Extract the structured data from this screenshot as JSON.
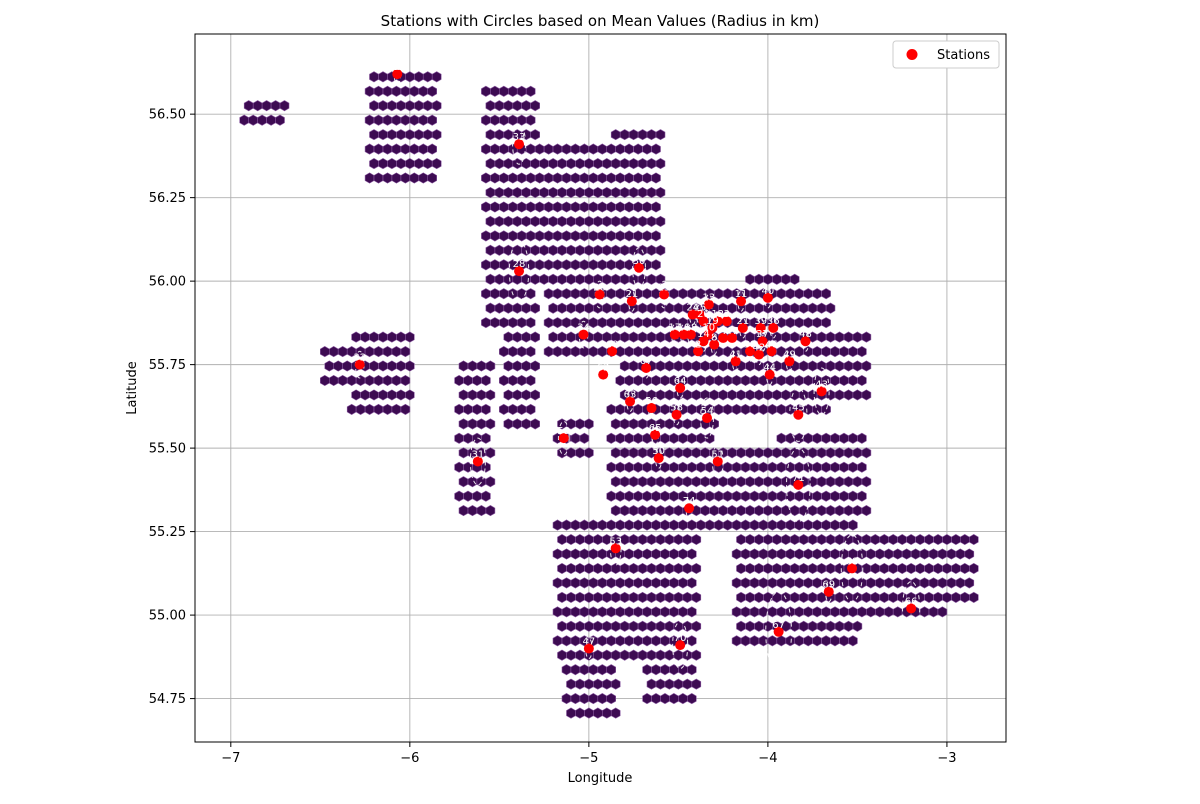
{
  "chart_data": {
    "type": "scatter",
    "title": "Stations with Circles based on Mean Values (Radius in km)",
    "xlabel": "Longitude",
    "ylabel": "Latitude",
    "xlim": [
      -7.2,
      -2.67
    ],
    "ylim": [
      54.62,
      56.74
    ],
    "xticks": [
      -7,
      -6,
      -5,
      -4,
      -3
    ],
    "yticks": [
      54.75,
      55.0,
      55.25,
      55.5,
      55.75,
      56.0,
      56.25,
      56.5
    ],
    "xtick_labels": [
      "−7",
      "−6",
      "−5",
      "−4",
      "−3"
    ],
    "ytick_labels": [
      "54.75",
      "55.00",
      "55.25",
      "55.50",
      "55.75",
      "56.00",
      "56.25",
      "56.50"
    ],
    "grid": true,
    "legend": {
      "placement": "top-right",
      "entries": [
        {
          "label": "Stations",
          "color": "#ff0000"
        }
      ]
    },
    "colors": {
      "hex_fill": "#3d0b52",
      "hex_edge": "#8a5aa0",
      "station": "#ff0000",
      "ring": "#ffffff"
    },
    "hex_cell_size_deg": 0.05,
    "coverage_regions": [
      {
        "lon": [
          -6.95,
          -6.7
        ],
        "lat": [
          56.45,
          56.55
        ]
      },
      {
        "lon": [
          -6.25,
          -5.85
        ],
        "lat": [
          56.3,
          56.62
        ]
      },
      {
        "lon": [
          -6.5,
          -6.3
        ],
        "lat": [
          55.68,
          55.8
        ]
      },
      {
        "lon": [
          -6.35,
          -6.0
        ],
        "lat": [
          55.6,
          55.85
        ]
      },
      {
        "lon": [
          -5.75,
          -5.55
        ],
        "lat": [
          55.3,
          55.75
        ]
      },
      {
        "lon": [
          -5.6,
          -5.3
        ],
        "lat": [
          55.85,
          56.58
        ]
      },
      {
        "lon": [
          -5.45,
          -4.9
        ],
        "lat": [
          56.0,
          56.4
        ]
      },
      {
        "lon": [
          -5.25,
          -4.7
        ],
        "lat": [
          55.75,
          56.05
        ]
      },
      {
        "lon": [
          -4.9,
          -4.6
        ],
        "lat": [
          56.0,
          56.45
        ]
      },
      {
        "lon": [
          -5.5,
          -5.3
        ],
        "lat": [
          55.55,
          55.95
        ]
      },
      {
        "lon": [
          -5.2,
          -5.0
        ],
        "lat": [
          55.45,
          55.6
        ]
      },
      {
        "lon": [
          -4.85,
          -3.65
        ],
        "lat": [
          55.6,
          55.98
        ]
      },
      {
        "lon": [
          -4.15,
          -3.85
        ],
        "lat": [
          55.95,
          56.02
        ]
      },
      {
        "lon": [
          -3.9,
          -3.45
        ],
        "lat": [
          55.65,
          55.85
        ]
      },
      {
        "lon": [
          -4.9,
          -4.3
        ],
        "lat": [
          55.25,
          55.65
        ]
      },
      {
        "lon": [
          -4.35,
          -3.9
        ],
        "lat": [
          55.25,
          55.5
        ]
      },
      {
        "lon": [
          -3.95,
          -3.45
        ],
        "lat": [
          55.3,
          55.55
        ]
      },
      {
        "lon": [
          -4.2,
          -3.5
        ],
        "lat": [
          54.9,
          55.3
        ]
      },
      {
        "lon": [
          -3.55,
          -3.0
        ],
        "lat": [
          55.0,
          55.25
        ]
      },
      {
        "lon": [
          -5.2,
          -4.4
        ],
        "lat": [
          54.85,
          55.3
        ]
      },
      {
        "lon": [
          -5.15,
          -4.85
        ],
        "lat": [
          54.68,
          54.95
        ]
      },
      {
        "lon": [
          -4.7,
          -4.4
        ],
        "lat": [
          54.72,
          54.85
        ]
      },
      {
        "lon": [
          -3.05,
          -2.85
        ],
        "lat": [
          55.05,
          55.25
        ]
      }
    ],
    "stations": [
      {
        "id": "2",
        "lon": -6.07,
        "lat": 56.62,
        "radius_deg": 0.03
      },
      {
        "id": "33",
        "lon": -5.39,
        "lat": 56.41,
        "radius_deg": 0.06
      },
      {
        "id": "28",
        "lon": -5.39,
        "lat": 56.03,
        "radius_deg": 0.09
      },
      {
        "id": "32",
        "lon": -6.28,
        "lat": 55.75,
        "radius_deg": 0.04
      },
      {
        "id": "30",
        "lon": -4.72,
        "lat": 56.04,
        "radius_deg": 0.06
      },
      {
        "id": "26",
        "lon": -4.94,
        "lat": 55.96,
        "radius_deg": 0.04
      },
      {
        "id": "21",
        "lon": -4.76,
        "lat": 55.94,
        "radius_deg": 0.03
      },
      {
        "id": "25",
        "lon": -4.58,
        "lat": 55.96,
        "radius_deg": 0.04
      },
      {
        "id": "34",
        "lon": -5.03,
        "lat": 55.84,
        "radius_deg": 0.04
      },
      {
        "id": "60",
        "lon": -4.87,
        "lat": 55.79,
        "radius_deg": 0.03
      },
      {
        "id": "62",
        "lon": -4.92,
        "lat": 55.72,
        "radius_deg": 0.05
      },
      {
        "id": "67",
        "lon": -4.68,
        "lat": 55.74,
        "radius_deg": 0.03
      },
      {
        "id": "63",
        "lon": -4.77,
        "lat": 55.64,
        "radius_deg": 0.03
      },
      {
        "id": "56",
        "lon": -4.65,
        "lat": 55.62,
        "radius_deg": 0.03
      },
      {
        "id": "58",
        "lon": -4.51,
        "lat": 55.6,
        "radius_deg": 0.03
      },
      {
        "id": "54",
        "lon": -4.34,
        "lat": 55.59,
        "radius_deg": 0.06
      },
      {
        "id": "64",
        "lon": -4.49,
        "lat": 55.68,
        "radius_deg": 0.03
      },
      {
        "id": "65",
        "lon": -4.63,
        "lat": 55.54,
        "radius_deg": 0.03
      },
      {
        "id": "59",
        "lon": -5.14,
        "lat": 55.53,
        "radius_deg": 0.05
      },
      {
        "id": "50",
        "lon": -4.61,
        "lat": 55.47,
        "radius_deg": 0.03
      },
      {
        "id": "51",
        "lon": -4.28,
        "lat": 55.46,
        "radius_deg": 0.05
      },
      {
        "id": "31",
        "lon": -5.62,
        "lat": 55.46,
        "radius_deg": 0.07
      },
      {
        "id": "71",
        "lon": -3.83,
        "lat": 55.39,
        "radius_deg": 0.11
      },
      {
        "id": "74",
        "lon": -4.44,
        "lat": 55.32,
        "radius_deg": 0.03
      },
      {
        "id": "53",
        "lon": -4.85,
        "lat": 55.2,
        "radius_deg": 0.05
      },
      {
        "id": "68",
        "lon": -3.53,
        "lat": 55.14,
        "radius_deg": 0.1
      },
      {
        "id": "69",
        "lon": -3.66,
        "lat": 55.07,
        "radius_deg": 0.03
      },
      {
        "id": "66",
        "lon": -3.2,
        "lat": 55.02,
        "radius_deg": 0.08
      },
      {
        "id": "67",
        "lon": -3.94,
        "lat": 54.95,
        "radius_deg": 0.12
      },
      {
        "id": "70",
        "lon": -4.49,
        "lat": 54.91,
        "radius_deg": 0.07
      },
      {
        "id": "47",
        "lon": -5.0,
        "lat": 54.9,
        "radius_deg": 0.03
      },
      {
        "id": "43",
        "lon": -3.7,
        "lat": 55.67,
        "radius_deg": 0.07
      },
      {
        "id": "45",
        "lon": -3.83,
        "lat": 55.6,
        "radius_deg": 0.08
      },
      {
        "id": "44",
        "lon": -3.99,
        "lat": 55.72,
        "radius_deg": 0.03
      },
      {
        "id": "49",
        "lon": -3.88,
        "lat": 55.76,
        "radius_deg": 0.03
      },
      {
        "id": "48",
        "lon": -3.79,
        "lat": 55.82,
        "radius_deg": 0.03
      },
      {
        "id": "46",
        "lon": -3.98,
        "lat": 55.79,
        "radius_deg": 0.03
      },
      {
        "id": "42",
        "lon": -4.05,
        "lat": 55.78,
        "radius_deg": 0.03
      },
      {
        "id": "41",
        "lon": -4.18,
        "lat": 55.76,
        "radius_deg": 0.03
      },
      {
        "id": "38",
        "lon": -4.1,
        "lat": 55.79,
        "radius_deg": 0.03
      },
      {
        "id": "37",
        "lon": -4.03,
        "lat": 55.82,
        "radius_deg": 0.03
      },
      {
        "id": "39",
        "lon": -4.04,
        "lat": 55.86,
        "radius_deg": 0.03
      },
      {
        "id": "36",
        "lon": -3.97,
        "lat": 55.86,
        "radius_deg": 0.03
      },
      {
        "id": "40",
        "lon": -4.0,
        "lat": 55.95,
        "radius_deg": 0.03
      },
      {
        "id": "11",
        "lon": -4.15,
        "lat": 55.94,
        "radius_deg": 0.03
      },
      {
        "id": "13",
        "lon": -4.33,
        "lat": 55.93,
        "radius_deg": 0.03
      },
      {
        "id": "24",
        "lon": -4.42,
        "lat": 55.9,
        "radius_deg": 0.03
      },
      {
        "id": "15",
        "lon": -4.38,
        "lat": 55.9,
        "radius_deg": 0.03
      },
      {
        "id": "20",
        "lon": -4.36,
        "lat": 55.88,
        "radius_deg": 0.03
      },
      {
        "id": "12",
        "lon": -4.28,
        "lat": 55.88,
        "radius_deg": 0.03
      },
      {
        "id": "3",
        "lon": -4.23,
        "lat": 55.88,
        "radius_deg": 0.03
      },
      {
        "id": "19",
        "lon": -4.31,
        "lat": 55.86,
        "radius_deg": 0.03
      },
      {
        "id": "21b",
        "label": "21",
        "lon": -4.14,
        "lat": 55.86,
        "radius_deg": 0.03
      },
      {
        "id": "10",
        "lon": -4.33,
        "lat": 55.84,
        "radius_deg": 0.03
      },
      {
        "id": "14",
        "lon": -4.36,
        "lat": 55.82,
        "radius_deg": 0.03
      },
      {
        "id": "4",
        "lon": -4.25,
        "lat": 55.83,
        "radius_deg": 0.03
      },
      {
        "id": "47b",
        "label": "47",
        "lon": -4.2,
        "lat": 55.83,
        "radius_deg": 0.03
      },
      {
        "id": "8",
        "lon": -4.3,
        "lat": 55.81,
        "radius_deg": 0.03
      },
      {
        "id": "17",
        "lon": -4.52,
        "lat": 55.84,
        "radius_deg": 0.03
      },
      {
        "id": "16",
        "lon": -4.47,
        "lat": 55.84,
        "radius_deg": 0.03
      },
      {
        "id": "18",
        "lon": -4.43,
        "lat": 55.84,
        "radius_deg": 0.03
      },
      {
        "id": "2b",
        "label": "2",
        "lon": -4.39,
        "lat": 55.79,
        "radius_deg": 0.03
      }
    ]
  }
}
